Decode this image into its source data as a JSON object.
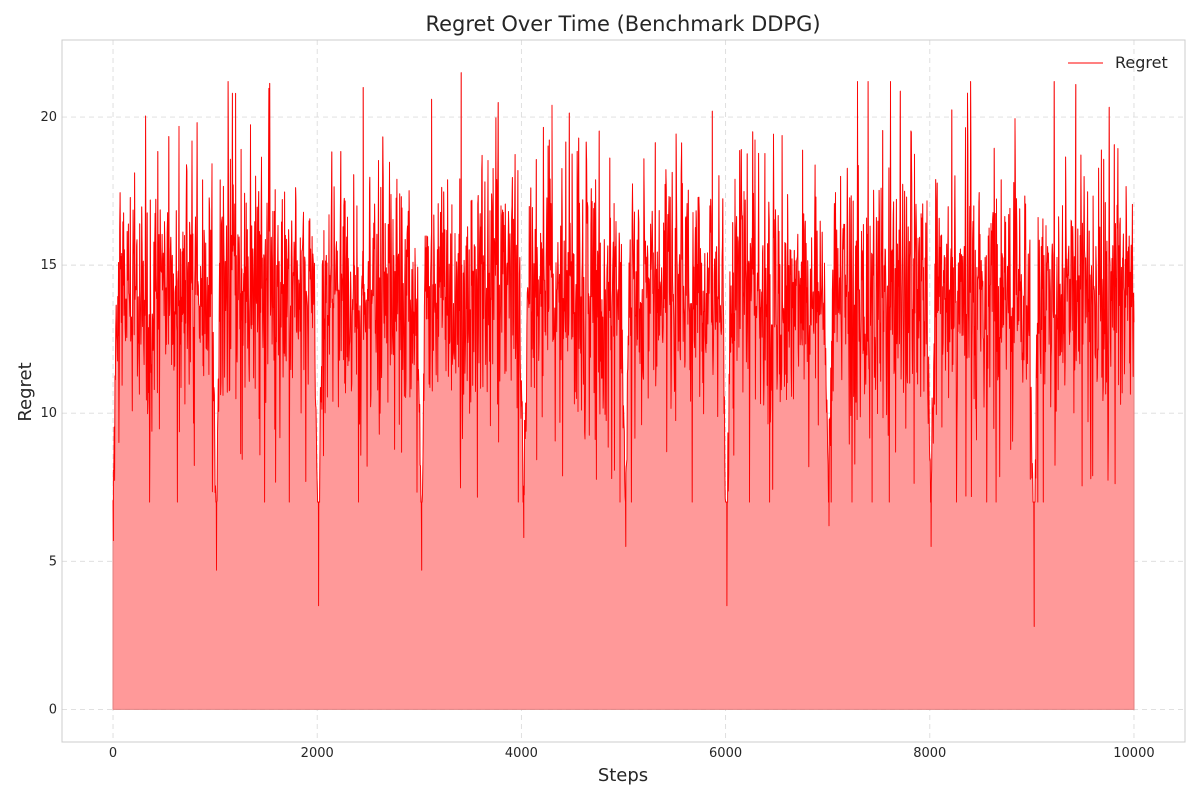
{
  "chart_data": {
    "type": "area",
    "title": "Regret Over Time (Benchmark DDPG)",
    "xlabel": "Steps",
    "ylabel": "Regret",
    "xlim": [
      -500,
      10500
    ],
    "ylim": [
      -1.1,
      22.6
    ],
    "xticks": [
      0,
      2000,
      4000,
      6000,
      8000,
      10000
    ],
    "xtick_labels": [
      "0",
      "2000",
      "4000",
      "6000",
      "8000",
      "10000"
    ],
    "yticks": [
      0,
      5,
      10,
      15,
      20
    ],
    "ytick_labels": [
      "0",
      "5",
      "10",
      "15",
      "20"
    ],
    "grid": true,
    "legend_position": "top-right",
    "line_color": "#ff0000",
    "fill_color": "#ff9999",
    "series": [
      {
        "name": "Regret",
        "x_range": [
          0,
          10000
        ],
        "pattern": "noisy oscillation around ~14 (mostly 10-18), periodic drops near every 1000 steps",
        "mean": 14.0,
        "typical_min": 10.0,
        "typical_max": 18.0,
        "overall_max": 21.5,
        "spikes": [
          {
            "x": 1200,
            "y": 20.8
          },
          {
            "x": 2450,
            "y": 21.0
          },
          {
            "x": 3120,
            "y": 20.6
          },
          {
            "x": 3410,
            "y": 21.5
          },
          {
            "x": 4300,
            "y": 20.4
          },
          {
            "x": 5870,
            "y": 20.2
          },
          {
            "x": 9430,
            "y": 21.1
          }
        ],
        "dips": [
          {
            "x": 0,
            "y": 5.7
          },
          {
            "x": 1010,
            "y": 4.7
          },
          {
            "x": 2010,
            "y": 3.5
          },
          {
            "x": 3020,
            "y": 4.7
          },
          {
            "x": 4020,
            "y": 5.8
          },
          {
            "x": 5020,
            "y": 5.5
          },
          {
            "x": 6010,
            "y": 3.5
          },
          {
            "x": 7010,
            "y": 6.2
          },
          {
            "x": 8010,
            "y": 5.5
          },
          {
            "x": 9020,
            "y": 2.8
          }
        ]
      }
    ]
  }
}
